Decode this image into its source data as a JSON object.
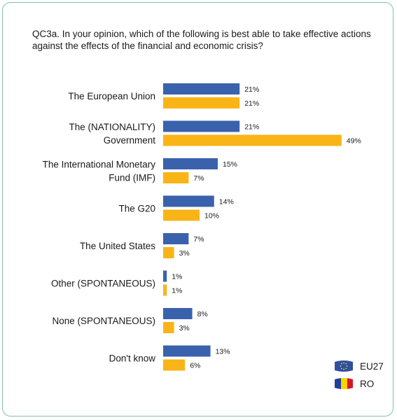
{
  "chart_data": {
    "type": "bar",
    "orientation": "horizontal",
    "title": "QC3a. In your opinion, which of the following is best able to take effective actions against the effects of the financial and economic crisis?",
    "categories": [
      [
        "The European Union"
      ],
      [
        "The (NATIONALITY)",
        "Government"
      ],
      [
        "The International Monetary",
        "Fund (IMF)"
      ],
      [
        "The G20"
      ],
      [
        "The United States"
      ],
      [
        "Other (SPONTANEOUS)"
      ],
      [
        "None (SPONTANEOUS)"
      ],
      [
        "Don't know"
      ]
    ],
    "series": [
      {
        "name": "EU27",
        "color": "#3a62ac",
        "values": [
          21,
          21,
          15,
          14,
          7,
          1,
          8,
          13
        ],
        "labels": [
          "21%",
          "21%",
          "15%",
          "14%",
          "7%",
          "1%",
          "8%",
          "13%"
        ]
      },
      {
        "name": "RO",
        "color": "#f9b517",
        "values": [
          21,
          49,
          7,
          10,
          3,
          1,
          3,
          6
        ],
        "labels": [
          "21%",
          "49%",
          "7%",
          "10%",
          "3%",
          "1%",
          "3%",
          "6%"
        ]
      }
    ],
    "unit": "%",
    "xlim": [
      0,
      50
    ],
    "grid": false,
    "legend": "bottom-right"
  },
  "legend": {
    "items": [
      {
        "label": "EU27",
        "icon": "eu-flag-icon"
      },
      {
        "label": "RO",
        "icon": "romania-flag-icon"
      }
    ]
  }
}
